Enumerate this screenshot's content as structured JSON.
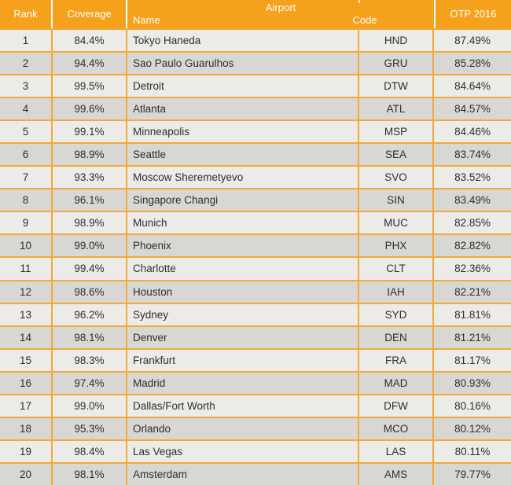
{
  "colors": {
    "header_bg": "#F5A11C",
    "grid_border": "#F0A93A",
    "row_light": "#EDEBE8",
    "row_dark": "#D9D7D4",
    "body_text": "#2E2E2E",
    "header_text": "#FFFFFF"
  },
  "table": {
    "header": {
      "rank": "Rank",
      "coverage": "Coverage",
      "airport": "Airport",
      "name": "Name",
      "code": "Code",
      "otp": "OTP 2016"
    },
    "rows": [
      {
        "rank": "1",
        "coverage": "84.4%",
        "name": "Tokyo Haneda",
        "code": "HND",
        "otp": "87.49%"
      },
      {
        "rank": "2",
        "coverage": "94.4%",
        "name": "Sao Paulo Guarulhos",
        "code": "GRU",
        "otp": "85.28%"
      },
      {
        "rank": "3",
        "coverage": "99.5%",
        "name": "Detroit",
        "code": "DTW",
        "otp": "84.64%"
      },
      {
        "rank": "4",
        "coverage": "99.6%",
        "name": "Atlanta",
        "code": "ATL",
        "otp": "84.57%"
      },
      {
        "rank": "5",
        "coverage": "99.1%",
        "name": "Minneapolis",
        "code": "MSP",
        "otp": "84.46%"
      },
      {
        "rank": "6",
        "coverage": "98.9%",
        "name": "Seattle",
        "code": "SEA",
        "otp": "83.74%"
      },
      {
        "rank": "7",
        "coverage": "93.3%",
        "name": "Moscow Sheremetyevo",
        "code": "SVO",
        "otp": "83.52%"
      },
      {
        "rank": "8",
        "coverage": "96.1%",
        "name": "Singapore Changi",
        "code": "SIN",
        "otp": "83.49%"
      },
      {
        "rank": "9",
        "coverage": "98.9%",
        "name": "Munich",
        "code": "MUC",
        "otp": "82.85%"
      },
      {
        "rank": "10",
        "coverage": "99.0%",
        "name": "Phoenix",
        "code": "PHX",
        "otp": "82.82%"
      },
      {
        "rank": "11",
        "coverage": "99.4%",
        "name": "Charlotte",
        "code": "CLT",
        "otp": "82.36%"
      },
      {
        "rank": "12",
        "coverage": "98.6%",
        "name": "Houston",
        "code": "IAH",
        "otp": "82.21%"
      },
      {
        "rank": "13",
        "coverage": "96.2%",
        "name": "Sydney",
        "code": "SYD",
        "otp": "81.81%"
      },
      {
        "rank": "14",
        "coverage": "98.1%",
        "name": "Denver",
        "code": "DEN",
        "otp": "81.21%"
      },
      {
        "rank": "15",
        "coverage": "98.3%",
        "name": "Frankfurt",
        "code": "FRA",
        "otp": "81.17%"
      },
      {
        "rank": "16",
        "coverage": "97.4%",
        "name": "Madrid",
        "code": "MAD",
        "otp": "80.93%"
      },
      {
        "rank": "17",
        "coverage": "99.0%",
        "name": "Dallas/Fort Worth",
        "code": "DFW",
        "otp": "80.16%"
      },
      {
        "rank": "18",
        "coverage": "95.3%",
        "name": "Orlando",
        "code": "MCO",
        "otp": "80.12%"
      },
      {
        "rank": "19",
        "coverage": "98.4%",
        "name": "Las Vegas",
        "code": "LAS",
        "otp": "80.11%"
      },
      {
        "rank": "20",
        "coverage": "98.1%",
        "name": "Amsterdam",
        "code": "AMS",
        "otp": "79.77%"
      }
    ]
  },
  "chart_data": {
    "type": "table",
    "title": "Airport OTP 2016 ranking",
    "columns": [
      "Rank",
      "Coverage",
      "Airport Name",
      "Airport Code",
      "OTP 2016"
    ],
    "rows": [
      [
        1,
        "84.4%",
        "Tokyo Haneda",
        "HND",
        "87.49%"
      ],
      [
        2,
        "94.4%",
        "Sao Paulo Guarulhos",
        "GRU",
        "85.28%"
      ],
      [
        3,
        "99.5%",
        "Detroit",
        "DTW",
        "84.64%"
      ],
      [
        4,
        "99.6%",
        "Atlanta",
        "ATL",
        "84.57%"
      ],
      [
        5,
        "99.1%",
        "Minneapolis",
        "MSP",
        "84.46%"
      ],
      [
        6,
        "98.9%",
        "Seattle",
        "SEA",
        "83.74%"
      ],
      [
        7,
        "93.3%",
        "Moscow Sheremetyevo",
        "SVO",
        "83.52%"
      ],
      [
        8,
        "96.1%",
        "Singapore Changi",
        "SIN",
        "83.49%"
      ],
      [
        9,
        "98.9%",
        "Munich",
        "MUC",
        "82.85%"
      ],
      [
        10,
        "99.0%",
        "Phoenix",
        "PHX",
        "82.82%"
      ],
      [
        11,
        "99.4%",
        "Charlotte",
        "CLT",
        "82.36%"
      ],
      [
        12,
        "98.6%",
        "Houston",
        "IAH",
        "82.21%"
      ],
      [
        13,
        "96.2%",
        "Sydney",
        "SYD",
        "81.81%"
      ],
      [
        14,
        "98.1%",
        "Denver",
        "DEN",
        "81.21%"
      ],
      [
        15,
        "98.3%",
        "Frankfurt",
        "FRA",
        "81.17%"
      ],
      [
        16,
        "97.4%",
        "Madrid",
        "MAD",
        "80.93%"
      ],
      [
        17,
        "99.0%",
        "Dallas/Fort Worth",
        "DFW",
        "80.16%"
      ],
      [
        18,
        "95.3%",
        "Orlando",
        "MCO",
        "80.12%"
      ],
      [
        19,
        "98.4%",
        "Las Vegas",
        "LAS",
        "80.11%"
      ],
      [
        20,
        "98.1%",
        "Amsterdam",
        "AMS",
        "79.77%"
      ]
    ]
  }
}
